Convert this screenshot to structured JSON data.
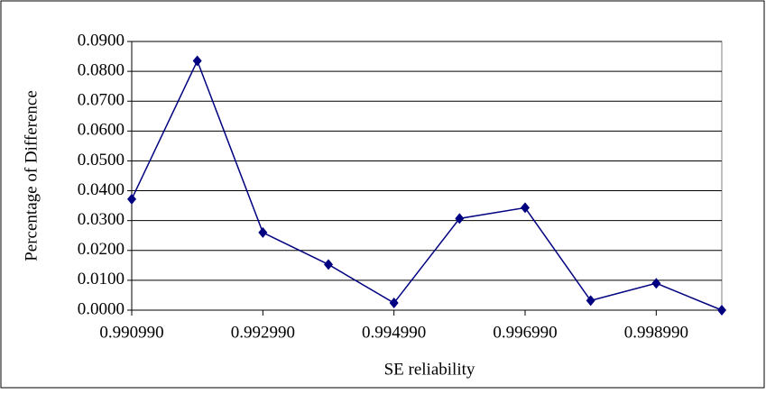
{
  "chart_data": {
    "type": "line",
    "x_label": "SE reliability",
    "y_label": "Percentage of Difference",
    "x": [
      0.99099,
      0.99199,
      0.99299,
      0.99399,
      0.99499,
      0.99599,
      0.99699,
      0.99799,
      0.99899,
      0.99999
    ],
    "series": [
      {
        "color": "#000080",
        "values": [
          0.0372,
          0.0835,
          0.026,
          0.0153,
          0.0024,
          0.0307,
          0.0343,
          0.0032,
          0.009,
          0.0
        ]
      }
    ],
    "xlim": [
      0.99099,
      0.99999
    ],
    "xticks": [
      {
        "value": 0.99099,
        "label": "0.990990"
      },
      {
        "value": 0.99299,
        "label": "0.992990"
      },
      {
        "value": 0.99499,
        "label": "0.994990"
      },
      {
        "value": 0.99699,
        "label": "0.996990"
      },
      {
        "value": 0.99899,
        "label": "0.998990"
      }
    ],
    "ylim": [
      0,
      0.09
    ],
    "yticks": [
      {
        "value": 0,
        "label": "0.0000"
      },
      {
        "value": 0.01,
        "label": "0.0100"
      },
      {
        "value": 0.02,
        "label": "0.0200"
      },
      {
        "value": 0.03,
        "label": "0.0300"
      },
      {
        "value": 0.04,
        "label": "0.0400"
      },
      {
        "value": 0.05,
        "label": "0.0500"
      },
      {
        "value": 0.06,
        "label": "0.0600"
      },
      {
        "value": 0.07,
        "label": "0.0700"
      },
      {
        "value": 0.08,
        "label": "0.0800"
      },
      {
        "value": 0.09,
        "label": "0.0900"
      }
    ],
    "grid": true
  }
}
